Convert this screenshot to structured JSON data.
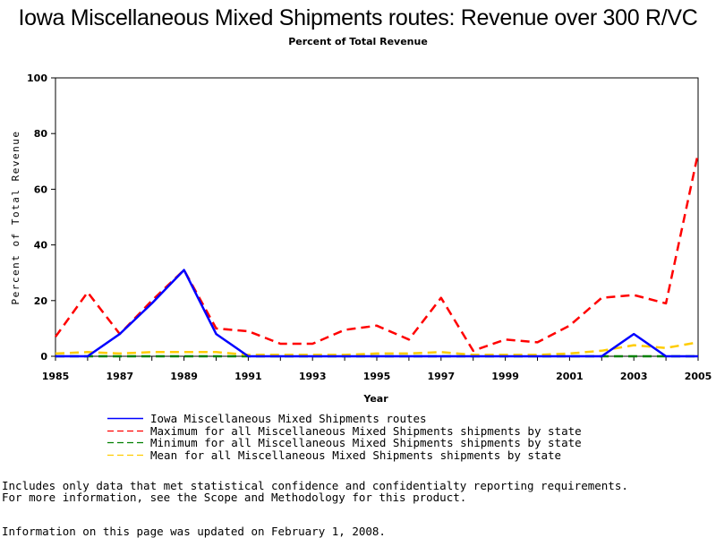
{
  "title": "Iowa Miscellaneous Mixed Shipments routes: Revenue over 300 R/VC",
  "subtitle": "Percent of Total Revenue",
  "chart_data": {
    "type": "line",
    "title": "Iowa Miscellaneous Mixed Shipments routes: Revenue over 300 R/VC",
    "subtitle": "Percent of Total Revenue",
    "xlabel": "Year",
    "ylabel": "Percent of Total Revenue",
    "xlim": [
      1985,
      2005
    ],
    "ylim": [
      0,
      100
    ],
    "x_ticks": [
      "1985",
      "1987",
      "1989",
      "1991",
      "1993",
      "1995",
      "1997",
      "1999",
      "2001",
      "2003",
      "2005"
    ],
    "y_ticks": [
      "0",
      "20",
      "40",
      "60",
      "80",
      "100"
    ],
    "grid": false,
    "legend_position": "bottom",
    "x": [
      1985,
      1986,
      1987,
      1988,
      1989,
      1990,
      1991,
      1992,
      1993,
      1994,
      1995,
      1996,
      1997,
      1998,
      1999,
      2000,
      2001,
      2002,
      2003,
      2004,
      2005
    ],
    "series": [
      {
        "name": "Iowa Miscellaneous Mixed Shipments routes",
        "color": "#0000ff",
        "style": "solid",
        "values": [
          0,
          0,
          8,
          19,
          31,
          8,
          0,
          0,
          0,
          0,
          0,
          0,
          0,
          0,
          0,
          0,
          0,
          0,
          8,
          0,
          0
        ]
      },
      {
        "name": "Maximum for all Miscellaneous Mixed Shipments shipments by state",
        "color": "#ff0000",
        "style": "dashed",
        "values": [
          7,
          23,
          8,
          20,
          31,
          10,
          9,
          4.5,
          4.5,
          9.5,
          11,
          6,
          21,
          2,
          6,
          5,
          11,
          21,
          22,
          19,
          73
        ]
      },
      {
        "name": "Minimum for all Miscellaneous Mixed Shipments shipments by state",
        "color": "#008000",
        "style": "dashed",
        "values": [
          0,
          0,
          0,
          0,
          0,
          0,
          0,
          0,
          0,
          0,
          0,
          0,
          0,
          0,
          0,
          0,
          0,
          0,
          0,
          0,
          0
        ]
      },
      {
        "name": "Mean for all Miscellaneous Mixed Shipments shipments by state",
        "color": "#ffcc00",
        "style": "dashed",
        "values": [
          1,
          1.5,
          1,
          1.5,
          1.5,
          1.5,
          0.5,
          0.5,
          0.5,
          0.5,
          1,
          1,
          1.5,
          0.5,
          0.5,
          0.5,
          1,
          2,
          4,
          3,
          5
        ]
      }
    ]
  },
  "footnotes": {
    "line1": "Includes only data that met statistical confidence and confidentialty reporting requirements.",
    "line2": "For more information, see the Scope and Methodology for this product.",
    "line3": "Information on this page was updated on February 1, 2008."
  }
}
